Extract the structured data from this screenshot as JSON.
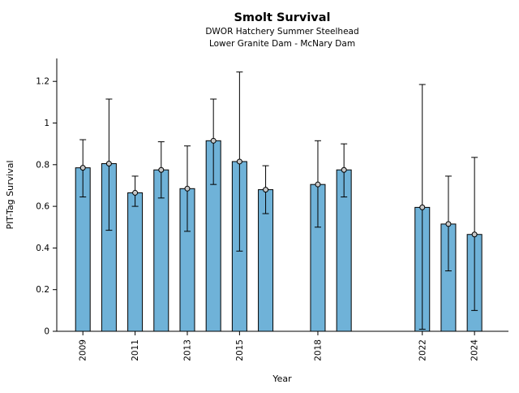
{
  "chart_data": {
    "type": "bar",
    "title": "Smolt Survival",
    "subtitle1": "DWOR Hatchery Summer Steelhead",
    "subtitle2": "Lower Granite Dam - McNary Dam",
    "xlabel": "Year",
    "ylabel": "PIT-Tag Survival",
    "ylim": [
      0,
      1.31
    ],
    "xlim": [
      2008.0,
      2025.3
    ],
    "yticks": [
      0,
      0.2,
      0.4,
      0.6,
      0.8,
      1,
      1.2
    ],
    "ytick_labels": [
      "0",
      "0.2",
      "0.4",
      "0.6",
      "0.8",
      "1",
      "1.2"
    ],
    "xticks": [
      2009,
      2011,
      2013,
      2015,
      2018,
      2022,
      2024
    ],
    "xtick_labels": [
      "2009",
      "2011",
      "2013",
      "2015",
      "2018",
      "2022",
      "2024"
    ],
    "grid": false,
    "legend": "none",
    "points": [
      {
        "year": 2009,
        "value": 0.785,
        "lo": 0.645,
        "hi": 0.92
      },
      {
        "year": 2010,
        "value": 0.805,
        "lo": 0.485,
        "hi": 1.115
      },
      {
        "year": 2011,
        "value": 0.665,
        "lo": 0.6,
        "hi": 0.745
      },
      {
        "year": 2012,
        "value": 0.775,
        "lo": 0.64,
        "hi": 0.91
      },
      {
        "year": 2013,
        "value": 0.685,
        "lo": 0.48,
        "hi": 0.89
      },
      {
        "year": 2014,
        "value": 0.915,
        "lo": 0.705,
        "hi": 1.115
      },
      {
        "year": 2015,
        "value": 0.815,
        "lo": 0.385,
        "hi": 1.245
      },
      {
        "year": 2016,
        "value": 0.68,
        "lo": 0.565,
        "hi": 0.795
      },
      {
        "year": 2018,
        "value": 0.705,
        "lo": 0.5,
        "hi": 0.915
      },
      {
        "year": 2019,
        "value": 0.775,
        "lo": 0.645,
        "hi": 0.9
      },
      {
        "year": 2022,
        "value": 0.595,
        "lo": 0.01,
        "hi": 1.185
      },
      {
        "year": 2023,
        "value": 0.515,
        "lo": 0.29,
        "hi": 0.745
      },
      {
        "year": 2024,
        "value": 0.465,
        "lo": 0.1,
        "hi": 0.835
      }
    ],
    "colors": {
      "bar_fill": "#6fb2d8",
      "bar_edge": "#000000",
      "error_bar": "#000000",
      "marker_fill": "#c8c8c8",
      "marker_edge": "#000000",
      "axis": "#000000",
      "background": "#ffffff"
    }
  }
}
